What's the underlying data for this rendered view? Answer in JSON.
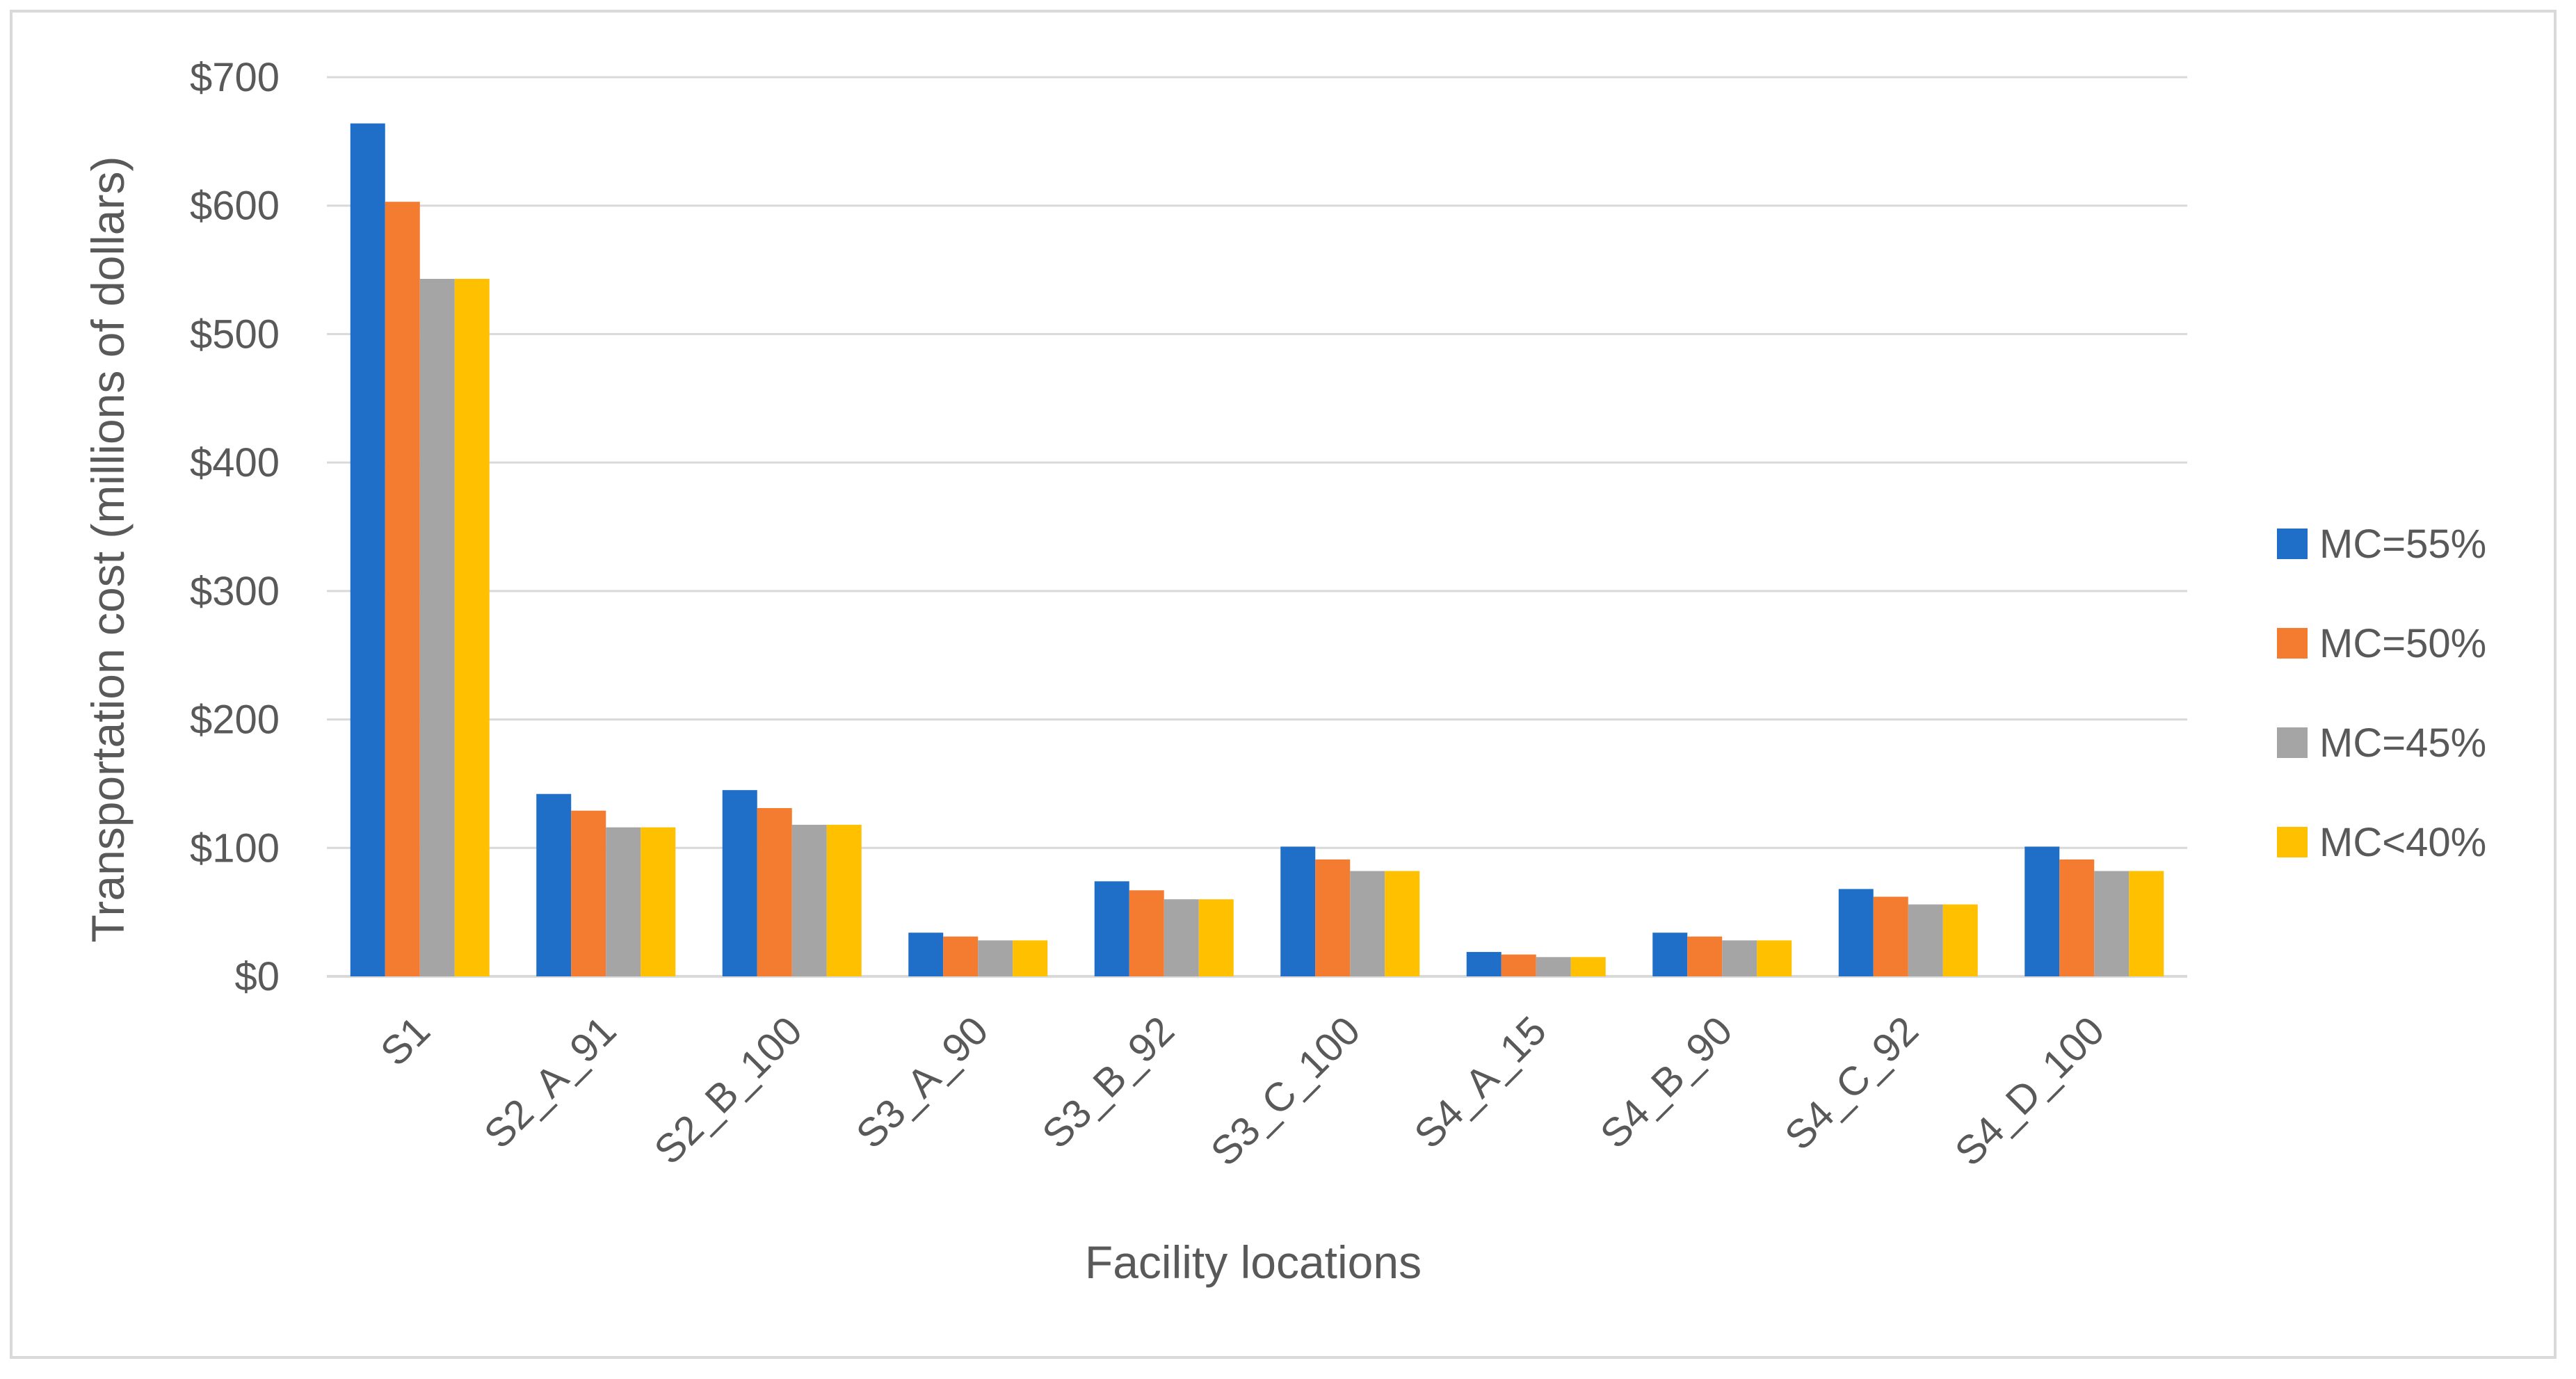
{
  "chart_data": {
    "type": "bar",
    "title": "",
    "xlabel": "Facility locations",
    "ylabel": "Transportation cost (millions of dollars)",
    "ylim": [
      0,
      700
    ],
    "y_ticks": [
      0,
      100,
      200,
      300,
      400,
      500,
      600,
      700
    ],
    "y_tick_labels": [
      "$0",
      "$100",
      "$200",
      "$300",
      "$400",
      "$500",
      "$600",
      "$700"
    ],
    "grid": true,
    "legend_position": "right",
    "categories": [
      "S1",
      "S2_A_91",
      "S2_B_100",
      "S3_A_90",
      "S3_B_92",
      "S3_C_100",
      "S4_A_15",
      "S4_B_90",
      "S4_C_92",
      "S4_D_100"
    ],
    "series": [
      {
        "name": "MC=55%",
        "color": "#1f6fc9",
        "values": [
          664,
          142,
          145,
          34,
          74,
          101,
          19,
          34,
          68,
          101
        ]
      },
      {
        "name": "MC=50%",
        "color": "#f47c30",
        "values": [
          603,
          129,
          131,
          31,
          67,
          91,
          17,
          31,
          62,
          91
        ]
      },
      {
        "name": "MC=45%",
        "color": "#a5a5a5",
        "values": [
          543,
          116,
          118,
          28,
          60,
          82,
          15,
          28,
          56,
          82
        ]
      },
      {
        "name": "MC<40%",
        "color": "#ffc000",
        "values": [
          543,
          116,
          118,
          28,
          60,
          82,
          15,
          28,
          56,
          82
        ]
      }
    ]
  }
}
